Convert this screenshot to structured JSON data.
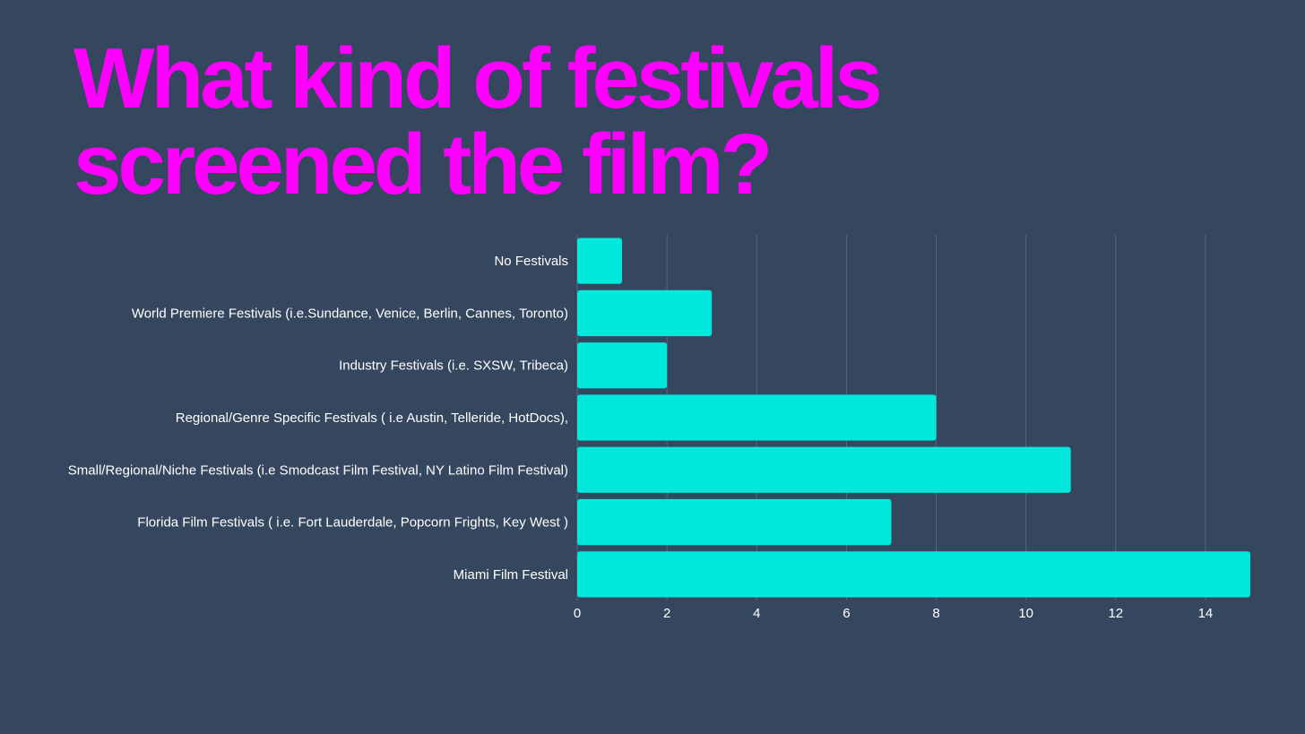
{
  "title_lines": [
    "What kind of festivals",
    "screened the film?"
  ],
  "colors": {
    "background": "#35475f",
    "title": "#ff00ff",
    "bar": "#00e8dc",
    "grid": "#56677d",
    "text": "#ffffff"
  },
  "chart_data": {
    "type": "bar",
    "orientation": "horizontal",
    "title": "What kind of festivals screened the film?",
    "xlabel": "",
    "ylabel": "",
    "categories": [
      "No Festivals",
      "World Premiere Festivals (i.e.Sundance, Venice, Berlin, Cannes, Toronto)",
      "Industry Festivals (i.e. SXSW, Tribeca)",
      "Regional/Genre Specific Festivals ( i.e Austin, Telleride, HotDocs),",
      "Small/Regional/Niche Festivals (i.e Smodcast Film Festival, NY Latino Film Festival)",
      "Florida Film Festivals ( i.e. Fort Lauderdale, Popcorn Frights, Key West )",
      "Miami Film Festival"
    ],
    "values": [
      1,
      3,
      2,
      8,
      11,
      7,
      15
    ],
    "xlim": [
      0,
      15
    ],
    "xticks": [
      0,
      2,
      4,
      6,
      8,
      10,
      12,
      14
    ],
    "grid": true,
    "legend": "none"
  }
}
